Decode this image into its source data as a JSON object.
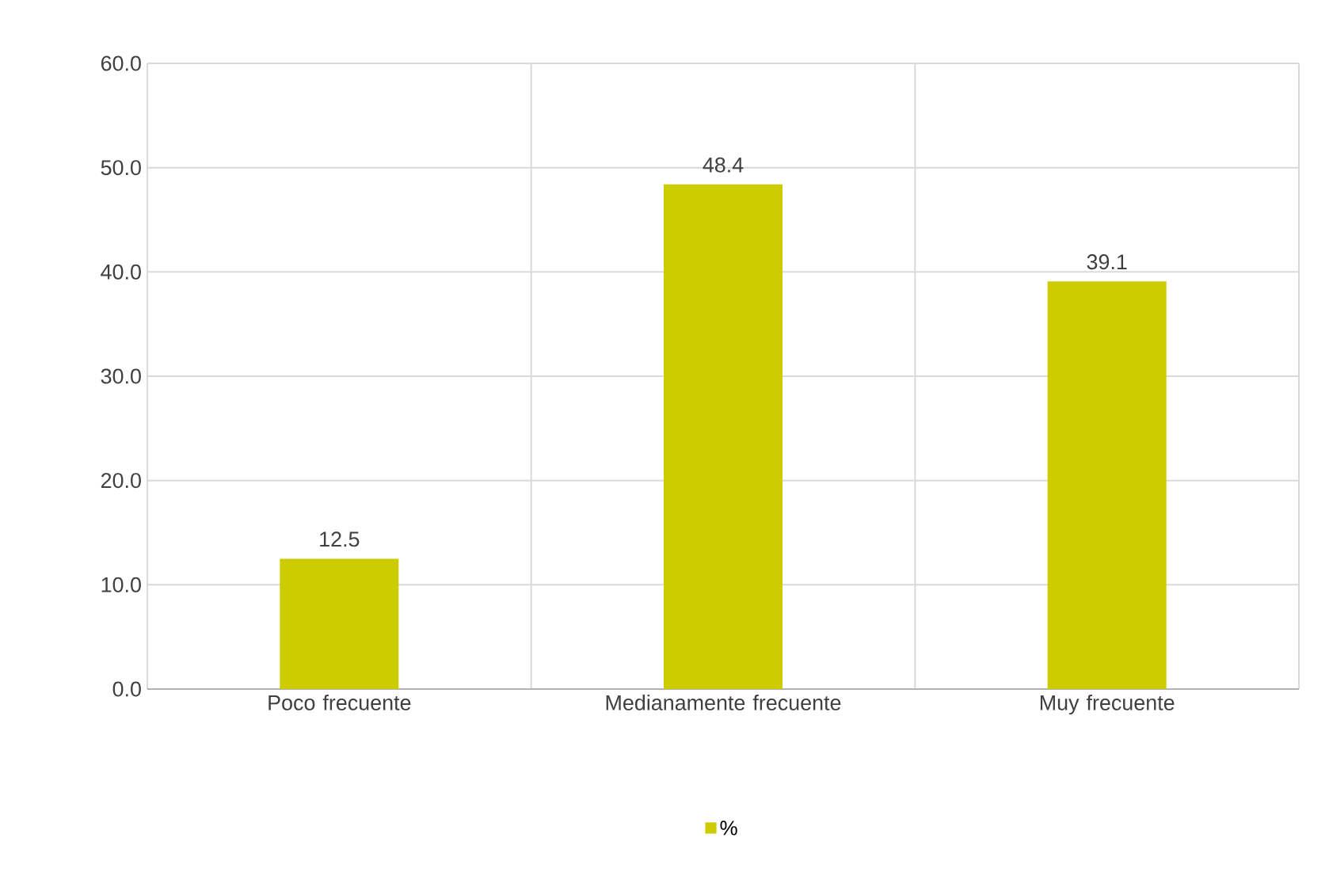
{
  "chart_data": {
    "type": "bar",
    "categories": [
      "Poco frecuente",
      "Medianamente frecuente",
      "Muy frecuente"
    ],
    "series": [
      {
        "name": "%",
        "color": "#cccc00",
        "values": [
          12.5,
          48.4,
          39.1
        ]
      }
    ],
    "ylim": [
      0,
      60
    ],
    "yticks": [
      {
        "value": 0,
        "label": "0.0"
      },
      {
        "value": 10,
        "label": "10.0"
      },
      {
        "value": 20,
        "label": "20.0"
      },
      {
        "value": 30,
        "label": "30.0"
      },
      {
        "value": 40,
        "label": "40.0"
      },
      {
        "value": 50,
        "label": "50.0"
      },
      {
        "value": 60,
        "label": "60.0"
      }
    ],
    "grid": true,
    "data_labels": true,
    "legend": "bottom"
  }
}
